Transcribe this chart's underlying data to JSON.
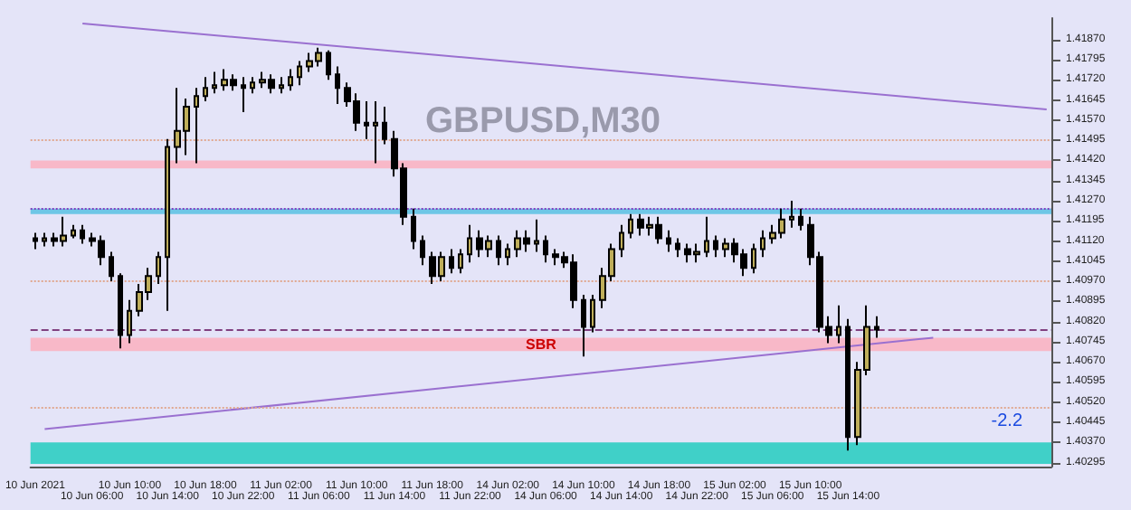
{
  "chart_data": {
    "type": "candlestick",
    "title": "GBPUSD,M30",
    "categories": [
      "10 Jun 2021",
      null,
      null,
      null,
      null,
      null,
      "10 Jun 06:00",
      null,
      null,
      null,
      "10 Jun 10:00",
      null,
      null,
      null,
      "10 Jun 14:00",
      null,
      null,
      null,
      "10 Jun 18:00",
      null,
      null,
      null,
      "10 Jun 22:00",
      null,
      null,
      null,
      "11 Jun 02:00",
      null,
      null,
      null,
      "11 Jun 06:00",
      null,
      null,
      null,
      "11 Jun 10:00",
      null,
      null,
      null,
      "11 Jun 14:00",
      null,
      null,
      null,
      "11 Jun 18:00",
      null,
      null,
      null,
      "11 Jun 22:00",
      null,
      null,
      null,
      "14 Jun 02:00",
      null,
      null,
      null,
      "14 Jun 06:00",
      null,
      null,
      null,
      "14 Jun 10:00",
      null,
      null,
      null,
      "14 Jun 14:00",
      null,
      null,
      null,
      "14 Jun 18:00",
      null,
      null,
      null,
      "14 Jun 22:00",
      null,
      null,
      null,
      "15 Jun 02:00",
      null,
      null,
      null,
      "15 Jun 06:00",
      null,
      null,
      null,
      "15 Jun 10:00",
      null,
      null,
      null,
      "15 Jun 14:00",
      null,
      null,
      null,
      null,
      null,
      null,
      null,
      null,
      null,
      null,
      null,
      null,
      null,
      null,
      null,
      null,
      null,
      null,
      null,
      null,
      null
    ],
    "series": [
      {
        "type": "line",
        "color": "#9a70d0",
        "values": [
          null,
          null,
          null,
          null,
          null,
          1.4193,
          null,
          null,
          null,
          null,
          null,
          null,
          null,
          null,
          null,
          null,
          null,
          null,
          null,
          null,
          null,
          null,
          null,
          null,
          null,
          null,
          null,
          null,
          null,
          null,
          null,
          null,
          null,
          null,
          null,
          null,
          null,
          null,
          null,
          null,
          null,
          null,
          null,
          null,
          null,
          null,
          null,
          null,
          null,
          null,
          null,
          null,
          null,
          null,
          null,
          null,
          null,
          null,
          null,
          null,
          null,
          null,
          null,
          null,
          null,
          null,
          null,
          null,
          null,
          null,
          null,
          null,
          null,
          null,
          null,
          null,
          null,
          null,
          null,
          null,
          null,
          null,
          null,
          null,
          null,
          null,
          null,
          null,
          null,
          null,
          null,
          null,
          null,
          null,
          null,
          null,
          null,
          null,
          null,
          null,
          null,
          null,
          null,
          null,
          null,
          null,
          null,
          1.4161
        ]
      },
      {
        "type": "line",
        "color": "#9a70d0",
        "values": [
          null,
          1.4042,
          null,
          null,
          null,
          null,
          null,
          null,
          null,
          null,
          null,
          null,
          null,
          null,
          null,
          null,
          null,
          null,
          null,
          null,
          null,
          null,
          null,
          null,
          null,
          null,
          null,
          null,
          null,
          null,
          null,
          null,
          null,
          null,
          null,
          null,
          null,
          null,
          null,
          null,
          null,
          null,
          null,
          null,
          null,
          null,
          null,
          null,
          null,
          null,
          null,
          null,
          null,
          null,
          null,
          null,
          null,
          null,
          null,
          null,
          null,
          null,
          null,
          null,
          null,
          null,
          null,
          null,
          null,
          null,
          null,
          null,
          null,
          null,
          null,
          null,
          null,
          null,
          null,
          null,
          null,
          null,
          null,
          null,
          null,
          null,
          null,
          null,
          null,
          null,
          null,
          null,
          null,
          null,
          null,
          1.4076,
          null,
          null,
          null,
          null,
          null,
          null,
          null,
          null,
          null,
          null,
          null,
          null
        ]
      },
      {
        "type": "candlestick",
        "colors": [
          "#000000",
          "#bfae5a",
          "#000000",
          "#bfae5a",
          "#bfae5a",
          "#000000",
          "#000000",
          "#000000",
          "#000000",
          "#000000",
          "#bfae5a",
          "#bfae5a",
          "#bfae5a",
          "#bfae5a",
          "#bfae5a",
          "#bfae5a",
          "#bfae5a",
          "#bfae5a",
          "#bfae5a",
          "#bfae5a",
          "#bfae5a",
          "#000000",
          "#000000",
          "#bfae5a",
          "#bfae5a",
          "#000000",
          "#bfae5a",
          "#bfae5a",
          "#bfae5a",
          "#bfae5a",
          "#bfae5a",
          "#000000",
          "#000000",
          "#000000",
          "#000000",
          "#000000",
          "#bfae5a",
          "#000000",
          "#000000",
          "#000000",
          "#000000",
          "#000000",
          "#000000",
          "#bfae5a",
          "#000000",
          "#bfae5a",
          "#bfae5a",
          "#000000",
          "#bfae5a",
          "#000000",
          "#bfae5a",
          "#bfae5a",
          "#000000",
          "#bfae5a",
          "#000000",
          "#000000",
          "#000000",
          "#000000",
          "#000000",
          "#bfae5a",
          "#bfae5a",
          "#bfae5a",
          "#bfae5a",
          "#bfae5a",
          "#000000",
          "#bfae5a",
          "#000000",
          "#000000",
          "#000000",
          "#000000",
          "#bfae5a",
          "#bfae5a",
          "#000000",
          "#bfae5a",
          "#000000",
          "#000000",
          "#bfae5a",
          "#bfae5a",
          "#bfae5a",
          "#bfae5a",
          "#bfae5a",
          "#000000",
          "#000000",
          "#000000",
          "#000000",
          "#bfae5a",
          "#000000",
          "#bfae5a",
          "#bfae5a",
          "#000000",
          null,
          null,
          null,
          null,
          null,
          null,
          null,
          null,
          null,
          null,
          null,
          null,
          null,
          null,
          null,
          null,
          null,
          null
        ],
        "ohlc": [
          [
            1.4113,
            1.4115,
            1.4109,
            1.4112
          ],
          [
            1.4112,
            1.4115,
            1.411,
            1.4113
          ],
          [
            1.4113,
            1.4115,
            1.411,
            1.4112
          ],
          [
            1.4112,
            1.4121,
            1.411,
            1.4114
          ],
          [
            1.4114,
            1.4118,
            1.4113,
            1.4116
          ],
          [
            1.4116,
            1.4118,
            1.4111,
            1.4113
          ],
          [
            1.4113,
            1.4115,
            1.411,
            1.4112
          ],
          [
            1.4112,
            1.4114,
            1.4103,
            1.4106
          ],
          [
            1.4106,
            1.4108,
            1.4097,
            1.4099
          ],
          [
            1.4099,
            1.41,
            1.4072,
            1.4077
          ],
          [
            1.4077,
            1.409,
            1.4074,
            1.4086
          ],
          [
            1.4086,
            1.4096,
            1.4084,
            1.4093
          ],
          [
            1.4093,
            1.4102,
            1.409,
            1.4099
          ],
          [
            1.4099,
            1.4108,
            1.4096,
            1.4106
          ],
          [
            1.4106,
            1.415,
            1.4086,
            1.4147
          ],
          [
            1.4147,
            1.4169,
            1.4141,
            1.4153
          ],
          [
            1.4153,
            1.4165,
            1.4144,
            1.4162
          ],
          [
            1.4162,
            1.4169,
            1.4141,
            1.4166
          ],
          [
            1.4166,
            1.4173,
            1.4164,
            1.4169
          ],
          [
            1.4169,
            1.4175,
            1.4167,
            1.417
          ],
          [
            1.417,
            1.4176,
            1.4168,
            1.4172
          ],
          [
            1.4172,
            1.4174,
            1.4168,
            1.417
          ],
          [
            1.417,
            1.4173,
            1.416,
            1.4169
          ],
          [
            1.4169,
            1.4173,
            1.4167,
            1.4171
          ],
          [
            1.4171,
            1.4175,
            1.4169,
            1.4172
          ],
          [
            1.4172,
            1.4174,
            1.4167,
            1.4169
          ],
          [
            1.4169,
            1.4173,
            1.4167,
            1.417
          ],
          [
            1.417,
            1.4176,
            1.4168,
            1.4173
          ],
          [
            1.4173,
            1.4179,
            1.417,
            1.4177
          ],
          [
            1.4177,
            1.4182,
            1.4175,
            1.4179
          ],
          [
            1.4179,
            1.4184,
            1.4177,
            1.4182
          ],
          [
            1.4182,
            1.4183,
            1.4172,
            1.4174
          ],
          [
            1.4174,
            1.4177,
            1.4163,
            1.4169
          ],
          [
            1.4169,
            1.4171,
            1.4162,
            1.4164
          ],
          [
            1.4164,
            1.4167,
            1.4153,
            1.4156
          ],
          [
            1.4156,
            1.4164,
            1.415,
            1.4155
          ],
          [
            1.4155,
            1.4164,
            1.4141,
            1.4156
          ],
          [
            1.4156,
            1.4162,
            1.4148,
            1.415
          ],
          [
            1.415,
            1.4153,
            1.4136,
            1.4139
          ],
          [
            1.4139,
            1.4141,
            1.4118,
            1.4121
          ],
          [
            1.4121,
            1.4124,
            1.4109,
            1.4112
          ],
          [
            1.4112,
            1.4114,
            1.4103,
            1.4106
          ],
          [
            1.4106,
            1.4108,
            1.4096,
            1.4099
          ],
          [
            1.4099,
            1.4108,
            1.4097,
            1.4106
          ],
          [
            1.4106,
            1.4109,
            1.41,
            1.4102
          ],
          [
            1.4102,
            1.4109,
            1.41,
            1.4107
          ],
          [
            1.4107,
            1.4118,
            1.4104,
            1.4113
          ],
          [
            1.4113,
            1.4116,
            1.4106,
            1.4109
          ],
          [
            1.4109,
            1.4114,
            1.4106,
            1.4112
          ],
          [
            1.4112,
            1.4114,
            1.4103,
            1.4106
          ],
          [
            1.4106,
            1.4111,
            1.4103,
            1.4109
          ],
          [
            1.4109,
            1.4116,
            1.4106,
            1.4113
          ],
          [
            1.4113,
            1.4116,
            1.4108,
            1.4111
          ],
          [
            1.4111,
            1.412,
            1.4108,
            1.4112
          ],
          [
            1.4112,
            1.4114,
            1.4104,
            1.4107
          ],
          [
            1.4107,
            1.4109,
            1.4103,
            1.4106
          ],
          [
            1.4106,
            1.4108,
            1.4102,
            1.4104
          ],
          [
            1.4104,
            1.4107,
            1.4087,
            1.409
          ],
          [
            1.409,
            1.4092,
            1.4069,
            1.408
          ],
          [
            1.408,
            1.4092,
            1.4078,
            1.409
          ],
          [
            1.409,
            1.4102,
            1.4087,
            1.4099
          ],
          [
            1.4099,
            1.4111,
            1.4097,
            1.4109
          ],
          [
            1.4109,
            1.4118,
            1.4106,
            1.4115
          ],
          [
            1.4115,
            1.4122,
            1.4113,
            1.412
          ],
          [
            1.412,
            1.4122,
            1.4114,
            1.4117
          ],
          [
            1.4117,
            1.4121,
            1.4114,
            1.4118
          ],
          [
            1.4118,
            1.4121,
            1.4111,
            1.4113
          ],
          [
            1.4113,
            1.4116,
            1.4108,
            1.4111
          ],
          [
            1.4111,
            1.4113,
            1.4106,
            1.4109
          ],
          [
            1.4109,
            1.4111,
            1.4104,
            1.4107
          ],
          [
            1.4107,
            1.4111,
            1.4104,
            1.4108
          ],
          [
            1.4108,
            1.4121,
            1.4106,
            1.4112
          ],
          [
            1.4112,
            1.4114,
            1.4106,
            1.4109
          ],
          [
            1.4109,
            1.4113,
            1.4106,
            1.4111
          ],
          [
            1.4111,
            1.4113,
            1.4104,
            1.4107
          ],
          [
            1.4107,
            1.4109,
            1.4099,
            1.4102
          ],
          [
            1.4102,
            1.4111,
            1.41,
            1.4109
          ],
          [
            1.4109,
            1.4116,
            1.4106,
            1.4113
          ],
          [
            1.4113,
            1.4118,
            1.4111,
            1.4115
          ],
          [
            1.4115,
            1.4124,
            1.4113,
            1.412
          ],
          [
            1.412,
            1.4127,
            1.4117,
            1.4121
          ],
          [
            1.4121,
            1.4124,
            1.4116,
            1.4118
          ],
          [
            1.4118,
            1.4121,
            1.4103,
            1.4106
          ],
          [
            1.4106,
            1.4108,
            1.4078,
            1.408
          ],
          [
            1.408,
            1.4084,
            1.4074,
            1.4077
          ],
          [
            1.4077,
            1.4088,
            1.4074,
            1.408
          ],
          [
            1.408,
            1.4083,
            1.4034,
            1.4039
          ],
          [
            1.4039,
            1.4067,
            1.4036,
            1.4064
          ],
          [
            1.4064,
            1.4088,
            1.4062,
            1.408
          ],
          [
            1.408,
            1.4084,
            1.4076,
            1.4079
          ],
          null,
          null,
          null,
          null,
          null,
          null,
          null,
          null,
          null,
          null,
          null,
          null,
          null,
          null,
          null,
          null,
          null,
          null
        ]
      }
    ],
    "ylim": [
      1.4028,
      1.4195
    ],
    "yticks": [
      {
        "value": 1.4187,
        "label": "1.41870"
      },
      1.41795,
      {
        "value": 1.4172,
        "label": "1.41720"
      },
      1.41645,
      {
        "value": 1.4157,
        "label": "1.41570"
      },
      1.41495,
      {
        "value": 1.4142,
        "label": "1.41420"
      },
      1.41345,
      {
        "value": 1.4127,
        "label": "1.41270"
      },
      1.41195,
      {
        "value": 1.4112,
        "label": "1.41120"
      },
      1.41045,
      {
        "value": 1.4097,
        "label": "1.40970"
      },
      1.40895,
      {
        "value": 1.4082,
        "label": "1.40820"
      },
      1.40745,
      {
        "value": 1.4067,
        "label": "1.40670"
      },
      1.40595,
      {
        "value": 1.4052,
        "label": "1.40520"
      },
      1.40445,
      {
        "value": 1.4037,
        "label": "1.40370"
      },
      1.40295
    ],
    "bands": [
      {
        "axis": "y",
        "from": 1.4139,
        "to": 1.4142,
        "color": "#f8b8c8"
      },
      {
        "axis": "y",
        "from": 1.4122,
        "to": 1.4124,
        "color": "#6ec6e6"
      },
      {
        "axis": "y",
        "from": 1.4071,
        "to": 1.4076,
        "color": "#f8b8c8",
        "label": "SBR"
      },
      {
        "axis": "y",
        "from": 1.4029,
        "to": 1.4037,
        "color": "#40d0c8"
      }
    ],
    "ref_lines": [
      {
        "axis": "y",
        "value": 1.415,
        "color": "#e0a890",
        "line_style": "dotted"
      },
      {
        "axis": "y",
        "value": 1.4124,
        "color": "#8040c0",
        "line_style": "dotted"
      },
      {
        "axis": "y",
        "value": 1.4097,
        "color": "#e0a890",
        "line_style": "dotted"
      },
      {
        "axis": "y",
        "value": 1.4079,
        "color": "#804080",
        "line_style": "dashed"
      },
      {
        "axis": "y",
        "value": 1.405,
        "color": "#e0a890",
        "line_style": "dotted"
      }
    ],
    "annotations": [
      "-2.2"
    ],
    "grid": false
  }
}
